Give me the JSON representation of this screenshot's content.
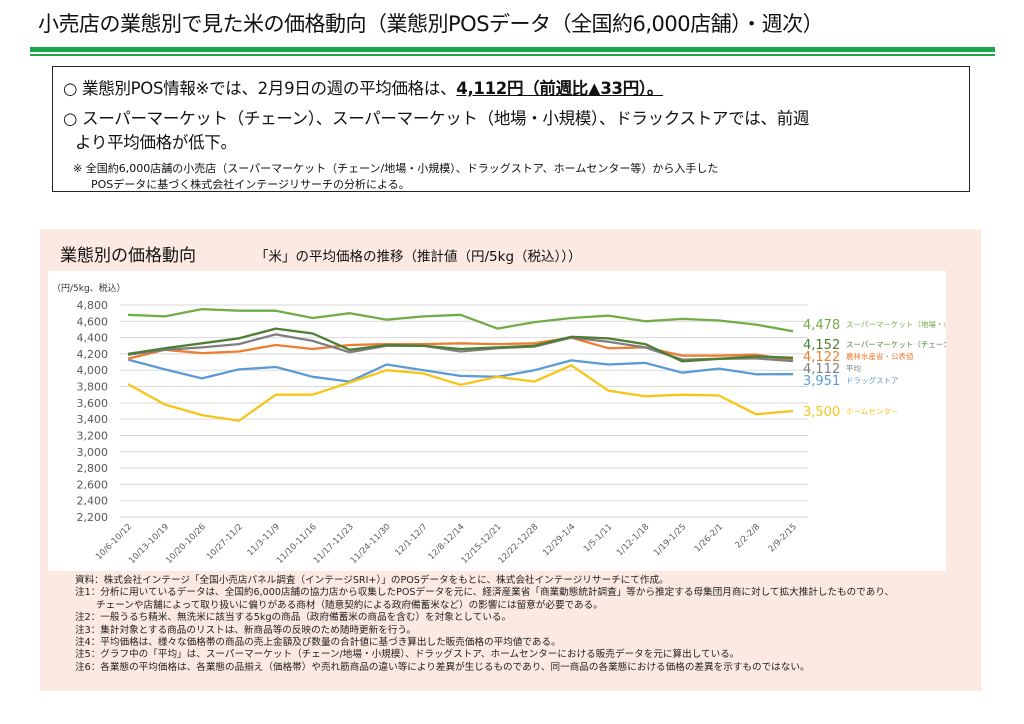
{
  "header": {
    "title": "小売店の業態別で見た米の価格動向（業態別POSデータ（全国約6,000店舗）・週次）"
  },
  "summary": {
    "line1_prefix": "○  業態別POS情報※では、2月9日の週の平均価格は、",
    "line1_highlight": "4,112円（前週比▲33円）。",
    "line2": "○  スーパーマーケット（チェーン）、スーパーマーケット（地場・小規模）、ドラックストアでは、前週",
    "line3": "より平均価格が低下。",
    "note1": "※  全国約6,000店舗の小売店（スーパーマーケット（チェーン/地場・小規模）、ドラッグストア、ホームセンター等）から入手した",
    "note2": "POSデータに基づく株式会社インテージリサーチの分析による。"
  },
  "panel": {
    "title": "業態別の価格動向",
    "subtitle": "「米」の平均価格の推移（推計値（円/5kg（税込）））"
  },
  "chart_data": {
    "type": "line",
    "title": "「米」の平均価格の推移（推計値（円/5kg（税込）））",
    "ylabel": "（円/5kg、税込）",
    "xlabel": "",
    "ylim": [
      2200,
      4800
    ],
    "yticks": [
      4800,
      4600,
      4400,
      4200,
      4000,
      3800,
      3600,
      3400,
      3200,
      3000,
      2800,
      2600,
      2400,
      2200
    ],
    "ytick_labels": [
      "4,800",
      "4,600",
      "4,400",
      "4,200",
      "4,000",
      "3,800",
      "3,600",
      "3,400",
      "3,200",
      "3,000",
      "2,800",
      "2,600",
      "2,400",
      "2,200"
    ],
    "grid": true,
    "legend": "right-end-labels",
    "categories": [
      "10/6-10/12",
      "10/13-10/19",
      "10/20-10/26",
      "10/27-11/2",
      "11/3-11/9",
      "11/10-11/16",
      "11/17-11/23",
      "11/24-11/30",
      "12/1-12/7",
      "12/8-12/14",
      "12/15-12/21",
      "12/22-12/28",
      "12/29-1/4",
      "1/5-1/11",
      "1/12-1/18",
      "1/19-1/25",
      "1/26-2/1",
      "2/2-2/8",
      "2/9-2/15"
    ],
    "series": [
      {
        "name": "スーパーマーケット（地場・小規模）",
        "color": "#70ad47",
        "end_label": "4,478",
        "values": [
          4680,
          4660,
          4750,
          4730,
          4730,
          4640,
          4700,
          4620,
          4660,
          4680,
          4510,
          4590,
          4640,
          4670,
          4600,
          4630,
          4610,
          4560,
          4478
        ]
      },
      {
        "name": "スーパーマーケット（チェーン）",
        "color": "#4e7d33",
        "end_label": "4,152",
        "values": [
          4200,
          4270,
          4330,
          4390,
          4510,
          4450,
          4250,
          4310,
          4300,
          4260,
          4280,
          4300,
          4410,
          4390,
          4320,
          4110,
          4140,
          4170,
          4152
        ]
      },
      {
        "name": "農林水産省・公表値",
        "color": "#ed7d31",
        "end_label": "4,122",
        "values": [
          4140,
          4250,
          4210,
          4230,
          4310,
          4260,
          4310,
          4320,
          4320,
          4330,
          4320,
          4330,
          4400,
          4270,
          4280,
          4180,
          4180,
          4190,
          4122
        ]
      },
      {
        "name": "平均",
        "color": "#7f7f7f",
        "end_label": "4,112",
        "values": [
          4190,
          4250,
          4280,
          4320,
          4440,
          4360,
          4220,
          4300,
          4300,
          4230,
          4270,
          4290,
          4400,
          4350,
          4280,
          4130,
          4140,
          4145,
          4112
        ]
      },
      {
        "name": "ドラッグストア",
        "color": "#5b9bd5",
        "end_label": "3,951",
        "values": [
          4130,
          4010,
          3900,
          4010,
          4040,
          3920,
          3860,
          4070,
          4000,
          3930,
          3920,
          4000,
          4120,
          4070,
          4090,
          3970,
          4020,
          3950,
          3951
        ]
      },
      {
        "name": "ホームセンター",
        "color": "#f5c518",
        "end_label": "3,500",
        "values": [
          3830,
          3580,
          3450,
          3380,
          3700,
          3700,
          3850,
          4000,
          3960,
          3820,
          3920,
          3860,
          4060,
          3750,
          3680,
          3700,
          3690,
          3460,
          3500
        ]
      }
    ]
  },
  "footnotes": [
    "資料：株式会社インテージ「全国小売店パネル調査（インテージSRI+）」のPOSデータをもとに、株式会社インテージリサーチにて作成。",
    "注1：分析に用いているデータは、全国約6,000店舗の協力店から収集したPOSデータを元に、経済産業省「商業動態統計調査」等から推定する母集団月商に対して拡大推計したものであり、",
    "チェーンや店舗によって取り扱いに偏りがある商材（随意契約による政府備蓄米など）の影響には留意が必要である。",
    "注2：一般うるち精米、無洗米に該当する5kgの商品（政府備蓄米の商品を含む）を対象としている。",
    "注3：集計対象とする商品のリストは、新商品等の反映のため随時更新を行う。",
    "注4：平均価格は、様々な価格帯の商品の売上金額及び数量の合計値に基づき算出した販売価格の平均値である。",
    "注5：グラフ中の「平均」は、スーパーマーケット（チェーン/地場・小規模）、ドラッグストア、ホームセンターにおける販売データを元に算出している。",
    "注6：各業態の平均価格は、各業態の品揃え（価格帯）や売れ筋商品の違い等により差異が生じるものであり、同一商品の各業態における価格の差異を示すものではない。"
  ]
}
